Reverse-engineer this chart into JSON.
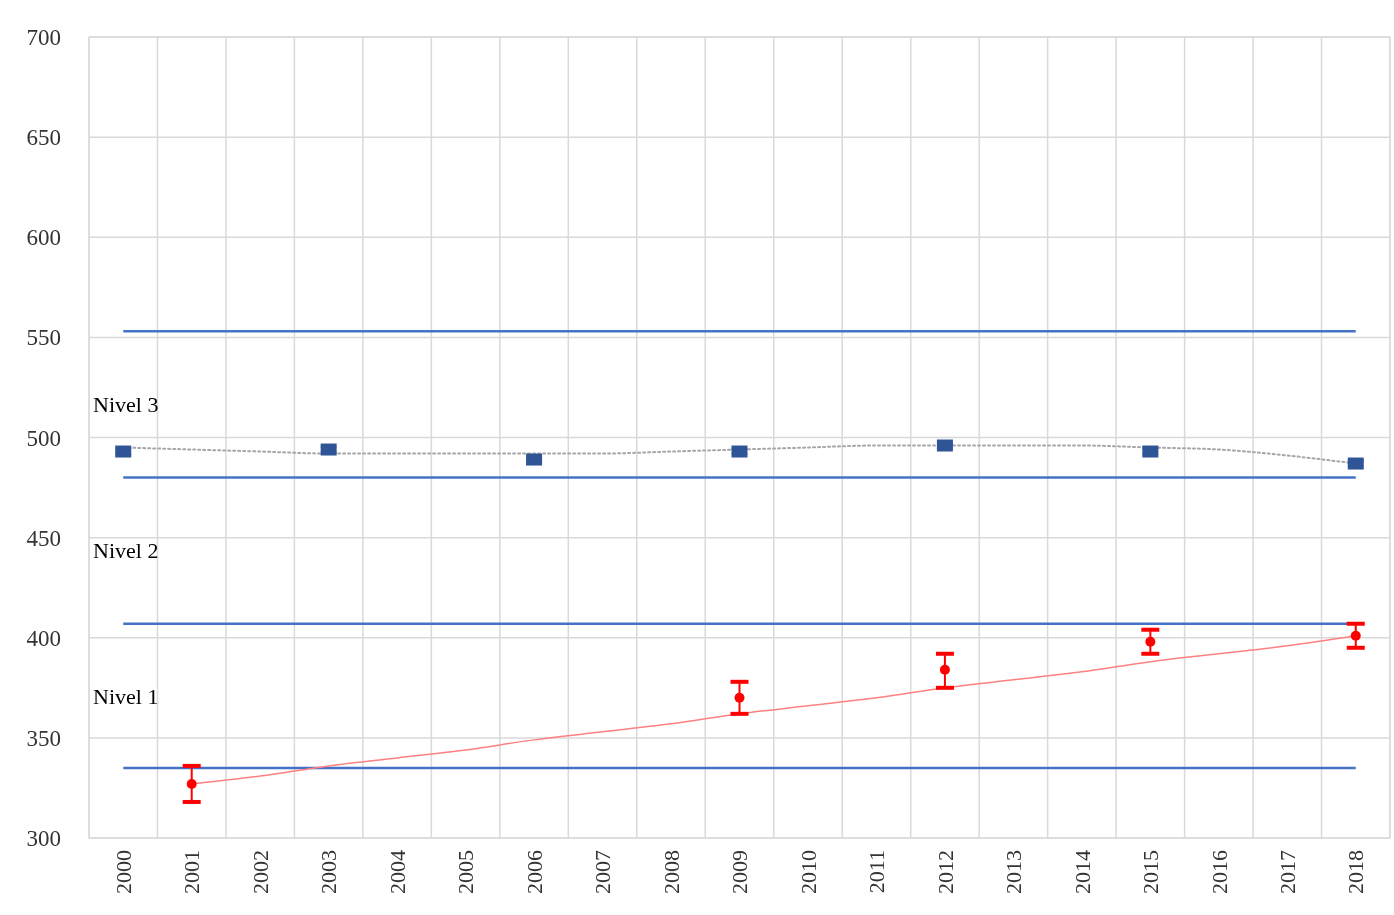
{
  "chart_data": {
    "type": "scatter",
    "categories": [
      "2000",
      "2001",
      "2002",
      "2003",
      "2004",
      "2005",
      "2006",
      "2007",
      "2008",
      "2009",
      "2010",
      "2011",
      "2012",
      "2013",
      "2014",
      "2015",
      "2016",
      "2017",
      "2018"
    ],
    "ylim": [
      300,
      700
    ],
    "yticks": [
      300,
      350,
      400,
      450,
      500,
      550,
      600,
      650,
      700
    ],
    "grid": true,
    "series": [
      {
        "type": "line",
        "color": "#a6a6a6",
        "line_style": "dotted",
        "marker": "none",
        "values": [
          495,
          494,
          493,
          492,
          492,
          492,
          492,
          492,
          493,
          494,
          495,
          496,
          496,
          496,
          496,
          495,
          494,
          491,
          487
        ]
      },
      {
        "type": "line",
        "color": "#ff8080",
        "line_style": "solid",
        "marker": "none",
        "values": [
          null,
          327,
          331,
          336,
          340,
          344,
          349,
          353,
          357,
          362,
          366,
          370,
          375,
          379,
          383,
          388,
          392,
          396,
          401
        ]
      },
      {
        "color": "#2f5597",
        "marker": "square",
        "values": [
          493,
          null,
          null,
          494,
          null,
          null,
          489,
          null,
          null,
          493,
          null,
          null,
          496,
          null,
          null,
          493,
          null,
          null,
          487
        ],
        "errors": [
          2,
          null,
          null,
          2,
          null,
          null,
          2,
          null,
          null,
          2,
          null,
          null,
          2,
          null,
          null,
          2,
          null,
          null,
          2
        ]
      },
      {
        "color": "#ff0000",
        "marker": "circle",
        "values": [
          null,
          327,
          null,
          null,
          null,
          null,
          null,
          null,
          null,
          370,
          null,
          null,
          384,
          null,
          null,
          398,
          null,
          null,
          401
        ],
        "errors": [
          null,
          [
            318,
            336
          ],
          null,
          null,
          null,
          null,
          null,
          null,
          null,
          [
            362,
            378
          ],
          null,
          null,
          [
            375,
            392
          ],
          null,
          null,
          [
            392,
            404
          ],
          null,
          null,
          [
            395,
            407
          ]
        ]
      }
    ],
    "ref_lines": [
      {
        "axis": "y",
        "value": 553,
        "color": "#4472c4"
      },
      {
        "axis": "y",
        "value": 480,
        "color": "#4472c4"
      },
      {
        "axis": "y",
        "value": 407,
        "color": "#4472c4"
      },
      {
        "axis": "y",
        "value": 335,
        "color": "#4472c4"
      }
    ],
    "annotations": [
      "Nivel 3",
      "Nivel 2",
      "Nivel 1"
    ]
  }
}
